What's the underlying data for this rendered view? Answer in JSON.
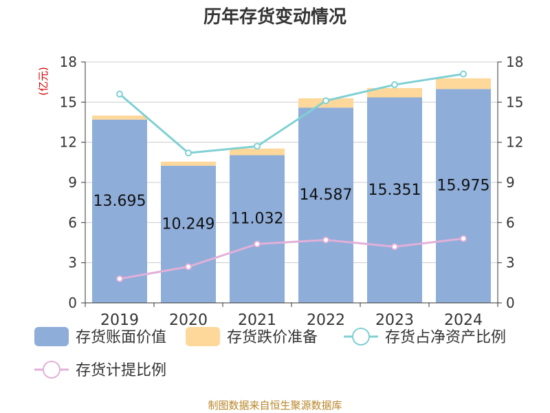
{
  "colors": {
    "book_value": "#8eadd9",
    "provision": "#fdd89a",
    "ratio_to_net_assets": "#7fd0d3",
    "provision_ratio": "#e2b0d8",
    "unit_red": "#d40000",
    "source_gold": "#b8862b"
  },
  "chart_data": {
    "type": "bar",
    "title": "历年存货变动情况",
    "unit_left": "(亿元)",
    "categories": [
      "2019",
      "2020",
      "2021",
      "2022",
      "2023",
      "2024"
    ],
    "ylim_left": [
      0,
      18
    ],
    "yticks_left": [
      0,
      3,
      6,
      9,
      12,
      15,
      18
    ],
    "ylim_right": [
      0,
      18
    ],
    "yticks_right": [
      0,
      3,
      6,
      9,
      12,
      15,
      18
    ],
    "grid": true,
    "legend_position": "bottom",
    "series": [
      {
        "name": "存货账面价值",
        "kind": "bar",
        "stack": "inventory",
        "axis": "left",
        "values": [
          13.695,
          10.249,
          11.032,
          14.587,
          15.351,
          15.975
        ],
        "labels": [
          "13.695",
          "10.249",
          "11.032",
          "14.587",
          "15.351",
          "15.975"
        ]
      },
      {
        "name": "存货跌价准备",
        "kind": "bar",
        "stack": "inventory",
        "axis": "left",
        "values": [
          0.3,
          0.3,
          0.5,
          0.7,
          0.7,
          0.8
        ]
      },
      {
        "name": "存货占净资产比例",
        "kind": "line",
        "axis": "right",
        "values": [
          15.6,
          11.2,
          11.7,
          15.1,
          16.3,
          17.1
        ]
      },
      {
        "name": "存货计提比例",
        "kind": "line",
        "axis": "right",
        "values": [
          1.8,
          2.7,
          4.4,
          4.7,
          4.2,
          4.8
        ]
      }
    ]
  },
  "source_text": "制图数据来自恒生聚源数据库"
}
